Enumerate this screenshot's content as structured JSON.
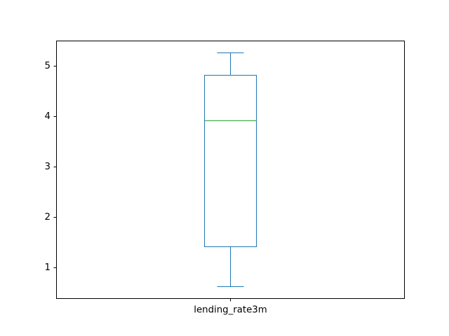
{
  "chart_data": {
    "type": "box",
    "categories": [
      "lending_rate3m"
    ],
    "boxes": [
      {
        "name": "lending_rate3m",
        "whisker_low": 0.62,
        "q1": 1.42,
        "median": 3.92,
        "q3": 4.82,
        "whisker_high": 5.27
      }
    ],
    "yticks": [
      1,
      2,
      3,
      4,
      5
    ],
    "ylim": [
      0.39,
      5.5
    ],
    "title": "",
    "xlabel": "",
    "ylabel": "",
    "grid": false,
    "colors": {
      "box": "#1f77b4",
      "median": "#2ca02c",
      "axes": "#000000"
    }
  }
}
